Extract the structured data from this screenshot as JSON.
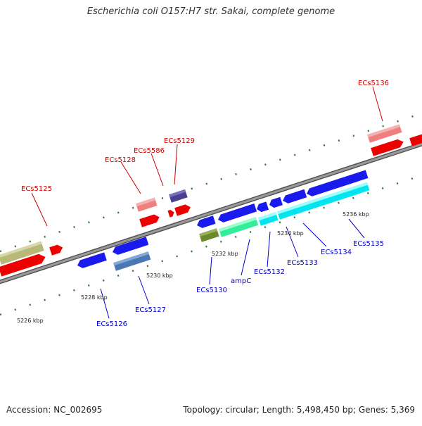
{
  "title": "Escherichia coli O157:H7 str. Sakai, complete genome",
  "accession": "Accession: NC_002695",
  "topology": "Topology: circular; Length: 5,498,450 bp; Genes: 5,369",
  "colors": {
    "forward_label": "#cc0000",
    "reverse_label": "#0000cc",
    "backbone": "#888888",
    "tick": "#2d7d2d"
  },
  "scale_labels": [
    "5226 kbp",
    "5228 kbp",
    "5230 kbp",
    "5232 kbp",
    "5234 kbp",
    "5236 kbp"
  ],
  "forward_genes": [
    "ECs5125",
    "ECs5128",
    "ECs5586",
    "ECs5129",
    "ECs5136"
  ],
  "reverse_genes": [
    "ECs5126",
    "ECs5127",
    "ECs5130",
    "ampC",
    "ECs5132",
    "ECs5133",
    "ECs5134",
    "ECs5135"
  ]
}
